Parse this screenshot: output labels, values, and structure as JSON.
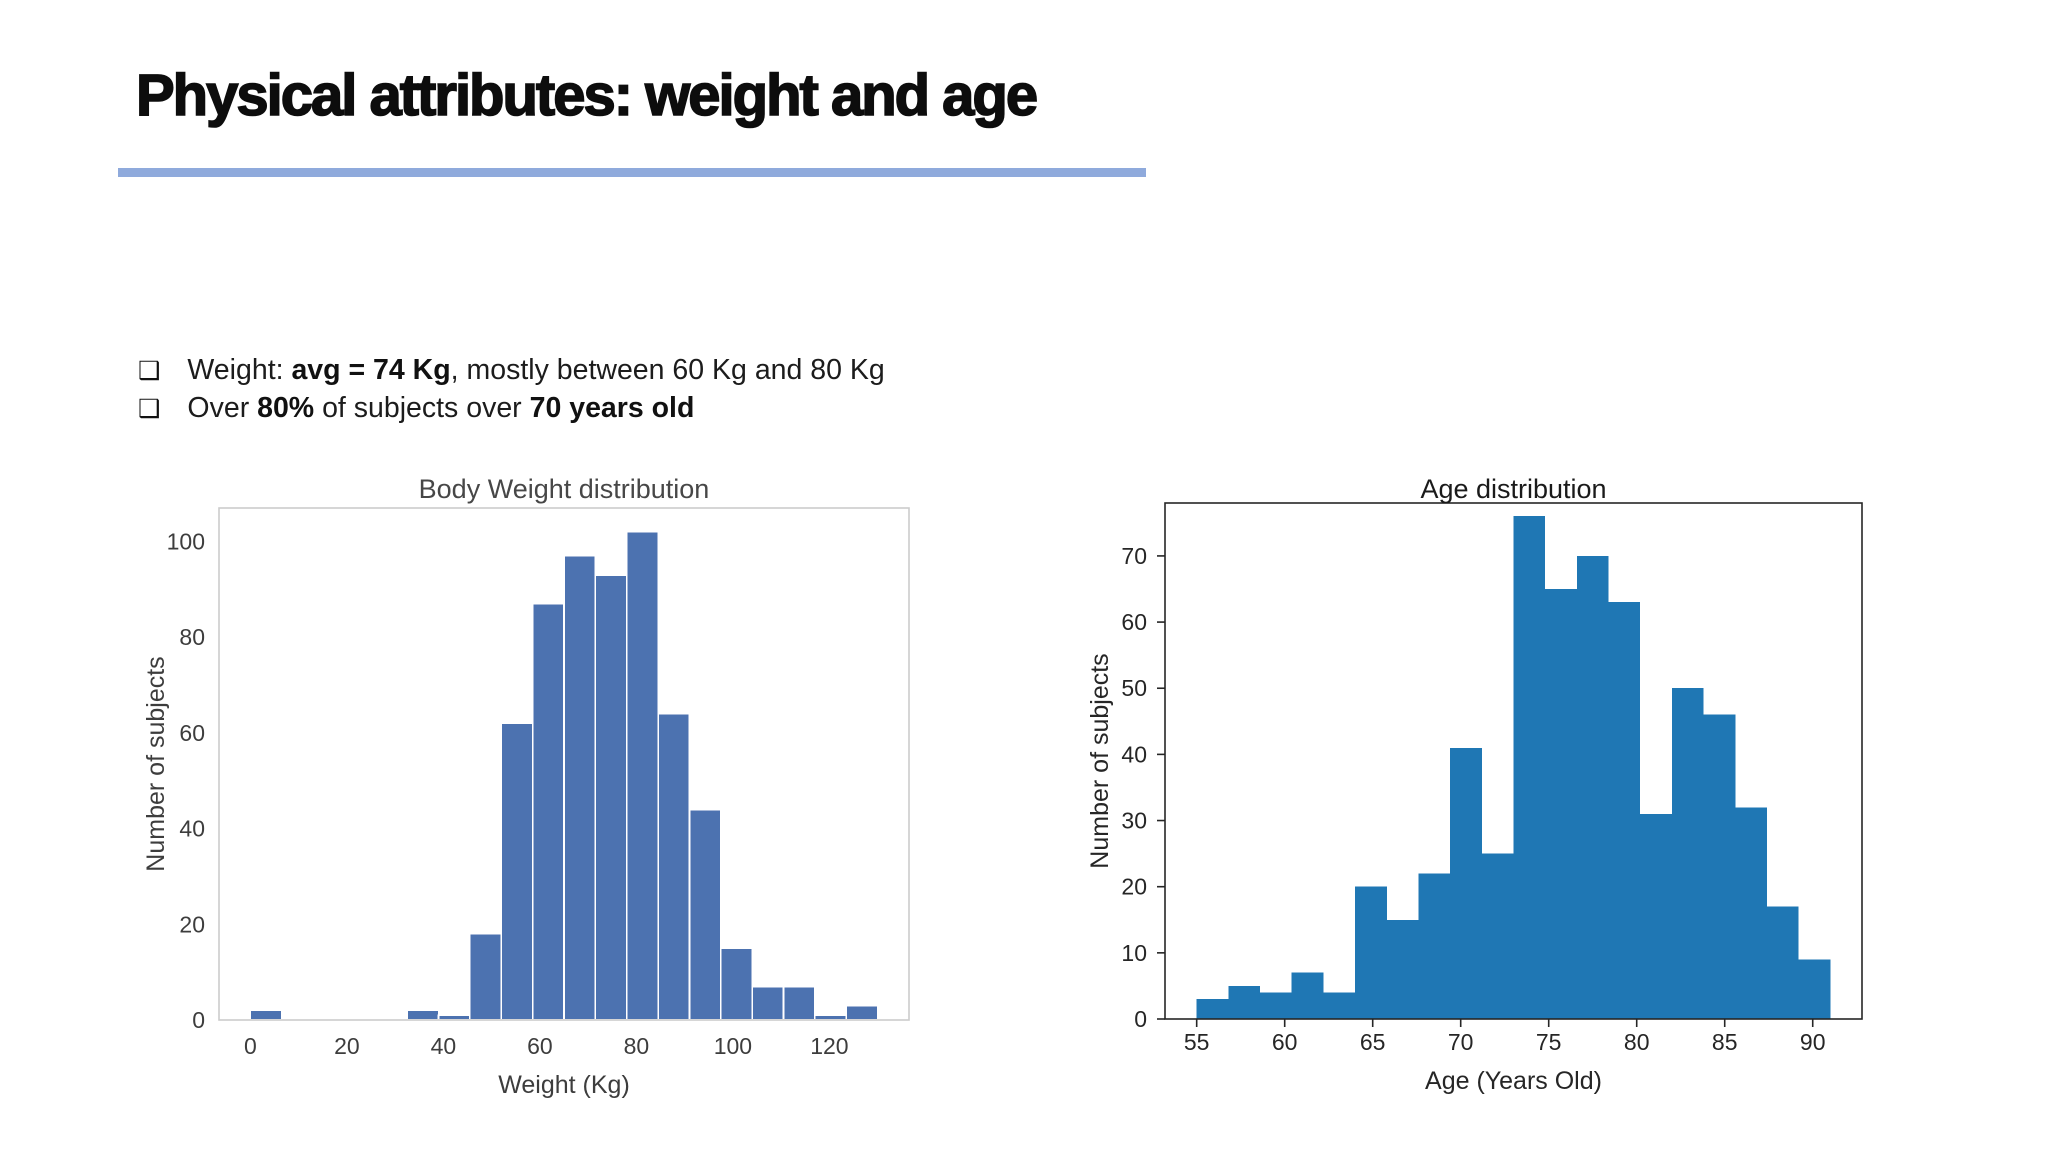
{
  "slide": {
    "title": "Physical attributes: weight and age",
    "underline_color": "#8FAADC",
    "bullet_glyph": "❑",
    "bullets": [
      {
        "parts": [
          {
            "t": "Weight: ",
            "b": false
          },
          {
            "t": "avg = 74 Kg",
            "b": true
          },
          {
            "t": ", mostly between 60 Kg and 80 Kg",
            "b": false
          }
        ]
      },
      {
        "parts": [
          {
            "t": "Over ",
            "b": false
          },
          {
            "t": "80%",
            "b": true
          },
          {
            "t": " of subjects over ",
            "b": false
          },
          {
            "t": "70 years old",
            "b": true
          }
        ]
      }
    ]
  },
  "chart_data": [
    {
      "type": "bar",
      "subtype": "histogram",
      "title": "Body Weight distribution",
      "xlabel": "Weight (Kg)",
      "ylabel": "Number of subjects",
      "bin_start": 0,
      "bin_width": 6.5,
      "values": [
        2,
        0,
        0,
        0,
        0,
        2,
        1,
        18,
        62,
        87,
        97,
        93,
        102,
        64,
        44,
        15,
        7,
        7,
        1,
        3
      ],
      "xticks": [
        0,
        20,
        40,
        60,
        80,
        100,
        120
      ],
      "yticks": [
        0,
        20,
        40,
        60,
        80,
        100
      ],
      "xlim": [
        -6.5,
        136.5
      ],
      "ylim": [
        0,
        107
      ],
      "grid": false,
      "legend": "none",
      "bar_color": "#4C72B0",
      "bar_edge_color": "#ffffff",
      "spine_color": "#cccccc",
      "tick_label_color": "#3d3d3d",
      "title_color": "#474747",
      "tick_marks": false
    },
    {
      "type": "bar",
      "subtype": "histogram",
      "title": "Age distribution",
      "xlabel": "Age (Years Old)",
      "ylabel": "Number of subjects",
      "bin_start": 55,
      "bin_width": 1.8,
      "values": [
        3,
        5,
        4,
        7,
        4,
        20,
        15,
        22,
        41,
        25,
        76,
        65,
        70,
        63,
        31,
        50,
        46,
        32,
        17,
        9
      ],
      "xticks": [
        55,
        60,
        65,
        70,
        75,
        80,
        85,
        90
      ],
      "yticks": [
        0,
        10,
        20,
        30,
        40,
        50,
        60,
        70
      ],
      "xlim": [
        53.2,
        92.8
      ],
      "ylim": [
        0,
        78
      ],
      "grid": false,
      "legend": "none",
      "bar_color": "#1F77B4",
      "bar_edge_color": "none",
      "spine_color": "#262626",
      "tick_label_color": "#262626",
      "title_color": "#1a1a1a",
      "tick_marks": true
    }
  ]
}
